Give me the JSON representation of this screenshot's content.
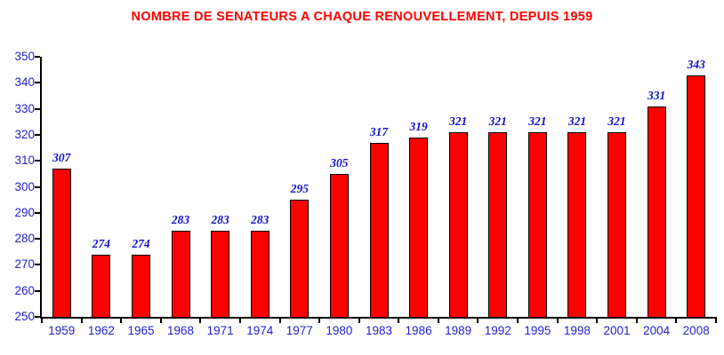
{
  "chart_data": {
    "type": "bar",
    "title": "NOMBRE DE SENATEURS A CHAQUE RENOUVELLEMENT, DEPUIS 1959",
    "categories": [
      "1959",
      "1962",
      "1965",
      "1968",
      "1971",
      "1974",
      "1977",
      "1980",
      "1983",
      "1986",
      "1989",
      "1992",
      "1995",
      "1998",
      "2001",
      "2004",
      "2008"
    ],
    "values": [
      307,
      274,
      274,
      283,
      283,
      283,
      295,
      305,
      317,
      319,
      321,
      321,
      321,
      321,
      321,
      331,
      343
    ],
    "xlabel": "",
    "ylabel": "",
    "ylim": [
      250,
      350
    ],
    "yticks": [
      250,
      260,
      270,
      280,
      290,
      300,
      310,
      320,
      330,
      340,
      350
    ],
    "grid": false,
    "legend": false,
    "colors": {
      "bar_fill": "#FF0000",
      "bar_border": "#000000",
      "title": "#FF0000",
      "axis_labels": "#2222CC",
      "value_labels": "#1111CC",
      "axis_line": "#000000"
    }
  }
}
